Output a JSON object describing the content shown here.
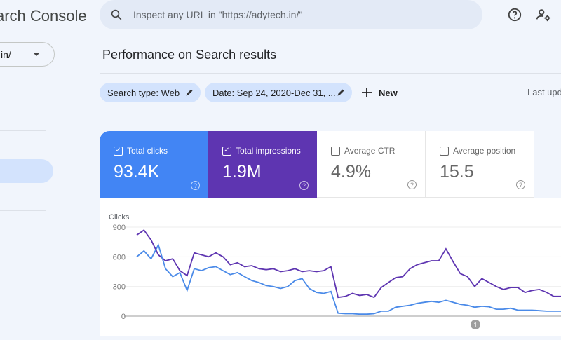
{
  "app": {
    "title": "arch Console"
  },
  "property": {
    "value": "in/"
  },
  "search": {
    "placeholder": "Inspect any URL in \"https://adytech.in/\""
  },
  "header": {
    "help_icon": "help-circle-icon",
    "account_icon": "manage-accounts-icon"
  },
  "page": {
    "title": "Performance on Search results",
    "last_updated": "Last upd"
  },
  "filters": [
    {
      "label": "Search type: Web"
    },
    {
      "label": "Date: Sep 24, 2020-Dec 31, ..."
    }
  ],
  "new_button": {
    "label": "New"
  },
  "metrics": [
    {
      "label": "Total clicks",
      "value": "93.4K",
      "checked": true,
      "color": "#4285f4"
    },
    {
      "label": "Total impressions",
      "value": "1.9M",
      "checked": true,
      "color": "#5e35b1"
    },
    {
      "label": "Average CTR",
      "value": "4.9%",
      "checked": false
    },
    {
      "label": "Average position",
      "value": "15.5",
      "checked": false
    }
  ],
  "chart_data": {
    "type": "line",
    "ylabel": "Clicks",
    "ylim": [
      0,
      900
    ],
    "yticks": [
      "900",
      "600",
      "300",
      "0"
    ],
    "annotation": "1",
    "grid": true,
    "series": [
      {
        "name": "Total impressions",
        "color": "#5e35b1",
        "values": [
          820,
          870,
          770,
          620,
          560,
          580,
          460,
          410,
          640,
          620,
          600,
          640,
          600,
          520,
          540,
          500,
          510,
          480,
          470,
          480,
          450,
          460,
          480,
          450,
          460,
          450,
          460,
          500,
          190,
          200,
          230,
          210,
          220,
          190,
          290,
          340,
          390,
          400,
          480,
          520,
          540,
          560,
          560,
          680,
          550,
          430,
          400,
          300,
          380,
          340,
          300,
          270,
          290,
          290,
          240,
          260,
          270,
          240,
          200,
          200
        ]
      },
      {
        "name": "Total clicks",
        "color": "#4a8ae8",
        "values": [
          600,
          660,
          580,
          720,
          480,
          400,
          440,
          260,
          480,
          460,
          490,
          500,
          460,
          420,
          440,
          400,
          360,
          340,
          310,
          300,
          280,
          300,
          360,
          380,
          280,
          240,
          230,
          250,
          30,
          25,
          25,
          20,
          20,
          25,
          50,
          50,
          90,
          100,
          110,
          130,
          140,
          150,
          140,
          160,
          140,
          120,
          110,
          90,
          100,
          95,
          70,
          70,
          80,
          60,
          60,
          60,
          55,
          50,
          50,
          50
        ]
      }
    ]
  }
}
